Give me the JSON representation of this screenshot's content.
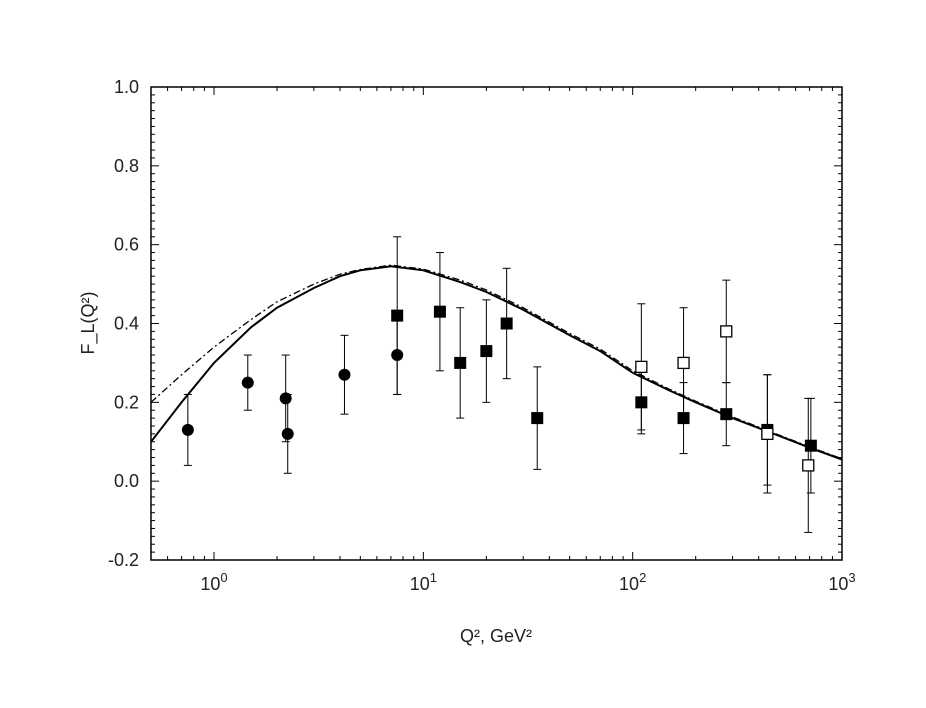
{
  "chart_data": {
    "type": "scatter",
    "title": "",
    "xlabel": "Q², GeV²",
    "ylabel": "F_L(Q²)",
    "x_scale": "log",
    "xlim": [
      0.5,
      1000
    ],
    "ylim": [
      -0.2,
      1.0
    ],
    "grid": false,
    "x_ticks": [
      {
        "value": 1,
        "base": "10",
        "exp": "0"
      },
      {
        "value": 10,
        "base": "10",
        "exp": "1"
      },
      {
        "value": 100,
        "base": "10",
        "exp": "2"
      },
      {
        "value": 1000,
        "base": "10",
        "exp": "3"
      }
    ],
    "y_ticks": [
      {
        "value": -0.2,
        "label": "-0.2"
      },
      {
        "value": 0.0,
        "label": "0.0"
      },
      {
        "value": 0.2,
        "label": "0.2"
      },
      {
        "value": 0.4,
        "label": "0.4"
      },
      {
        "value": 0.6,
        "label": "0.6"
      },
      {
        "value": 0.8,
        "label": "0.8"
      },
      {
        "value": 1.0,
        "label": "1.0"
      }
    ],
    "series": [
      {
        "marker": "circle-filled",
        "points": [
          {
            "x": 0.75,
            "y": 0.13,
            "err": 0.09
          },
          {
            "x": 1.45,
            "y": 0.25,
            "err": 0.07
          },
          {
            "x": 2.2,
            "y": 0.21,
            "err": 0.11
          },
          {
            "x": 2.25,
            "y": 0.12,
            "err": 0.1
          },
          {
            "x": 4.2,
            "y": 0.27,
            "err": 0.1
          },
          {
            "x": 7.5,
            "y": 0.32,
            "err": 0.1
          }
        ]
      },
      {
        "marker": "square-filled",
        "points": [
          {
            "x": 7.5,
            "y": 0.42,
            "err": 0.2
          },
          {
            "x": 12,
            "y": 0.43,
            "err": 0.15
          },
          {
            "x": 15,
            "y": 0.3,
            "err": 0.14
          },
          {
            "x": 20,
            "y": 0.33,
            "err": 0.13
          },
          {
            "x": 25,
            "y": 0.4,
            "err": 0.14
          },
          {
            "x": 35,
            "y": 0.16,
            "err": 0.13
          },
          {
            "x": 110,
            "y": 0.2,
            "err": 0.08
          },
          {
            "x": 175,
            "y": 0.16,
            "err": 0.09
          },
          {
            "x": 280,
            "y": 0.17,
            "err": 0.08
          },
          {
            "x": 440,
            "y": 0.13,
            "err": 0.14
          },
          {
            "x": 710,
            "y": 0.09,
            "err": 0.12
          }
        ]
      },
      {
        "marker": "square-open",
        "points": [
          {
            "x": 110,
            "y": 0.29,
            "err": 0.16
          },
          {
            "x": 175,
            "y": 0.3,
            "err": 0.14
          },
          {
            "x": 280,
            "y": 0.38,
            "err": 0.13
          },
          {
            "x": 440,
            "y": 0.12,
            "err": 0.15
          },
          {
            "x": 690,
            "y": 0.04,
            "err": 0.17
          }
        ]
      },
      {
        "style": "solid-line",
        "points": [
          {
            "x": 0.5,
            "y": 0.1
          },
          {
            "x": 0.7,
            "y": 0.2
          },
          {
            "x": 1.0,
            "y": 0.3
          },
          {
            "x": 1.5,
            "y": 0.39
          },
          {
            "x": 2.0,
            "y": 0.44
          },
          {
            "x": 3.0,
            "y": 0.49
          },
          {
            "x": 4.0,
            "y": 0.52
          },
          {
            "x": 5.0,
            "y": 0.535
          },
          {
            "x": 7.0,
            "y": 0.545
          },
          {
            "x": 10,
            "y": 0.535
          },
          {
            "x": 15,
            "y": 0.505
          },
          {
            "x": 20,
            "y": 0.48
          },
          {
            "x": 30,
            "y": 0.435
          },
          {
            "x": 50,
            "y": 0.37
          },
          {
            "x": 70,
            "y": 0.33
          },
          {
            "x": 100,
            "y": 0.275
          },
          {
            "x": 150,
            "y": 0.23
          },
          {
            "x": 200,
            "y": 0.2
          },
          {
            "x": 300,
            "y": 0.16
          },
          {
            "x": 500,
            "y": 0.115
          },
          {
            "x": 700,
            "y": 0.085
          },
          {
            "x": 1000,
            "y": 0.055
          }
        ]
      },
      {
        "style": "dash-dot-line",
        "points": [
          {
            "x": 0.5,
            "y": 0.2
          },
          {
            "x": 0.7,
            "y": 0.27
          },
          {
            "x": 1.0,
            "y": 0.34
          },
          {
            "x": 1.5,
            "y": 0.41
          },
          {
            "x": 2.0,
            "y": 0.455
          },
          {
            "x": 3.0,
            "y": 0.5
          },
          {
            "x": 4.0,
            "y": 0.525
          },
          {
            "x": 5.0,
            "y": 0.537
          },
          {
            "x": 7.0,
            "y": 0.548
          },
          {
            "x": 10,
            "y": 0.538
          },
          {
            "x": 15,
            "y": 0.51
          },
          {
            "x": 20,
            "y": 0.485
          },
          {
            "x": 30,
            "y": 0.44
          },
          {
            "x": 50,
            "y": 0.375
          },
          {
            "x": 70,
            "y": 0.335
          },
          {
            "x": 100,
            "y": 0.28
          },
          {
            "x": 150,
            "y": 0.233
          },
          {
            "x": 200,
            "y": 0.203
          },
          {
            "x": 300,
            "y": 0.163
          },
          {
            "x": 500,
            "y": 0.117
          },
          {
            "x": 700,
            "y": 0.087
          },
          {
            "x": 1000,
            "y": 0.057
          }
        ]
      }
    ]
  }
}
